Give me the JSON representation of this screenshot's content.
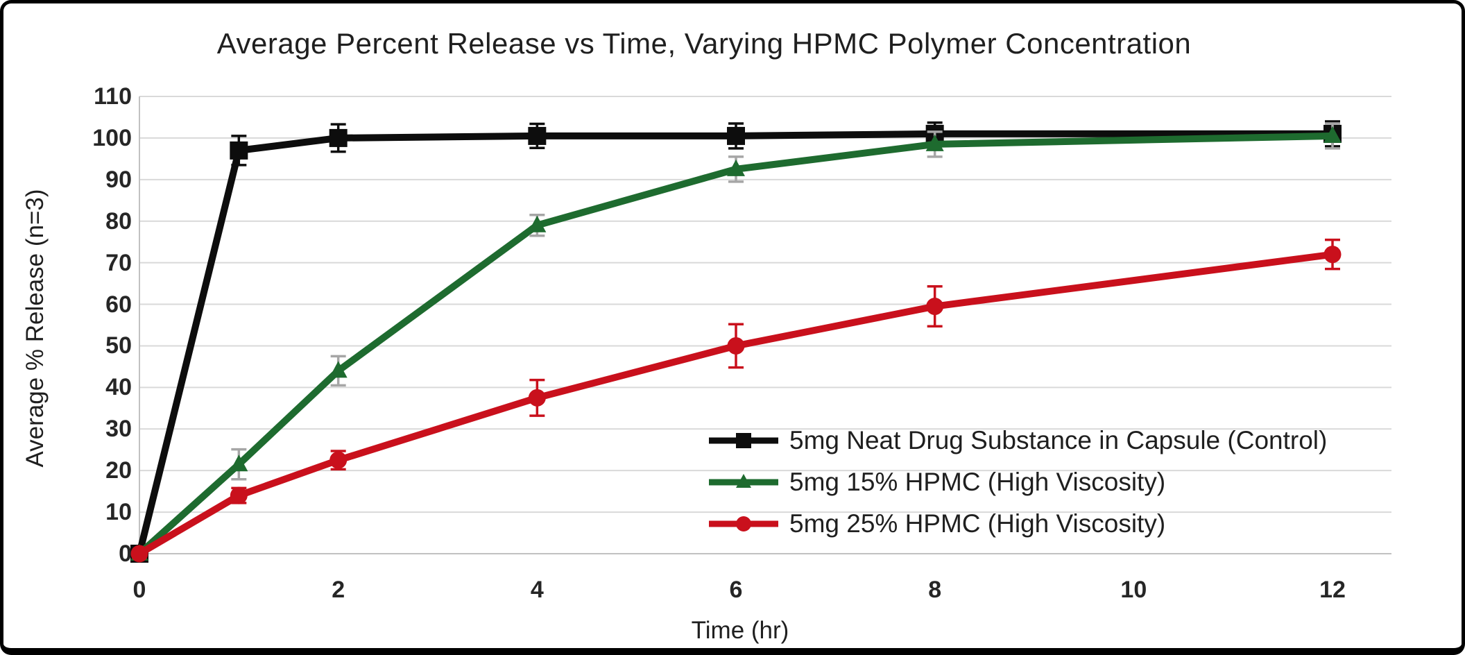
{
  "chart_data": {
    "type": "line",
    "title": "Average Percent Release vs Time, Varying HPMC Polymer Concentration",
    "xlabel": "Time (hr)",
    "ylabel": "Average % Release (n=3)",
    "x": [
      0,
      1,
      2,
      4,
      6,
      8,
      12
    ],
    "x_ticks": [
      0,
      2,
      4,
      6,
      8,
      10,
      12
    ],
    "y_ticks": [
      0,
      10,
      20,
      30,
      40,
      50,
      60,
      70,
      80,
      90,
      100,
      110
    ],
    "xlim": [
      0,
      12
    ],
    "ylim": [
      0,
      110
    ],
    "grid": "horizontal",
    "grid_color": "#d9d9d9",
    "axis_color": "#c1c1c1",
    "legend_position": "inside-lower-right",
    "series": [
      {
        "name": "5mg Neat Drug Substance in Capsule (Control)",
        "color": "#0d0d0d",
        "marker": "square",
        "error_color": "#0d0d0d",
        "y": [
          0,
          97,
          100,
          100.5,
          100.5,
          101,
          101
        ],
        "yerr": [
          0,
          3.5,
          3.3,
          2.9,
          3,
          2.7,
          3
        ]
      },
      {
        "name": "5mg 15% HPMC (High Viscosity)",
        "color": "#1e6b2f",
        "marker": "triangle",
        "error_color": "#a6a6a6",
        "y": [
          0,
          21.5,
          44,
          79,
          92.5,
          98.5,
          100.5
        ],
        "yerr": [
          0,
          3.6,
          3.5,
          2.5,
          3,
          3,
          3
        ]
      },
      {
        "name": "5mg 25% HPMC (High Viscosity)",
        "color": "#c9101c",
        "marker": "circle",
        "error_color": "#c9101c",
        "y": [
          0,
          14,
          22.5,
          37.5,
          50,
          59.5,
          72
        ],
        "yerr": [
          0,
          1.8,
          2.2,
          4.3,
          5.2,
          4.8,
          3.5
        ]
      }
    ]
  }
}
